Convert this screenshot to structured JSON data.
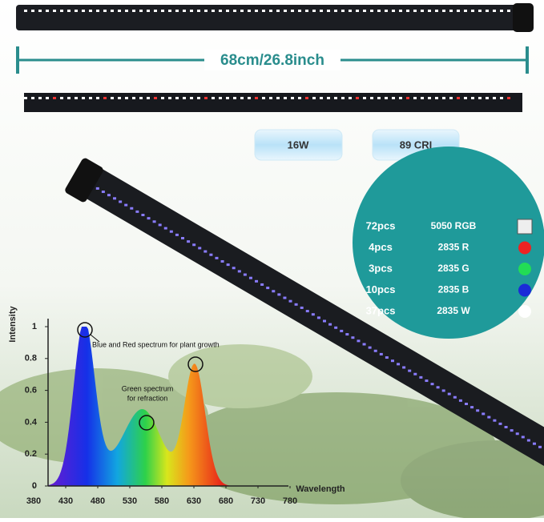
{
  "dimension": "68cm/26.8inch",
  "badges": [
    "16W",
    "89 CRI"
  ],
  "leds": [
    {
      "count": "72pcs",
      "type": "5050 RGB"
    },
    {
      "count": "4pcs",
      "type": "2835 R"
    },
    {
      "count": "3pcs",
      "type": "2835 G"
    },
    {
      "count": "10pcs",
      "type": "2835 B"
    },
    {
      "count": "37pcs",
      "type": "2835 W"
    }
  ],
  "spectrum": {
    "y_label": "Intensity",
    "x_label": "Wavelength",
    "ylim": [
      0,
      1
    ],
    "yticks": [
      0,
      0.2,
      0.4,
      0.6,
      0.8,
      1
    ],
    "xlim": [
      380,
      780
    ],
    "xticks": [
      380,
      430,
      480,
      530,
      580,
      630,
      680,
      730,
      780
    ],
    "annotations": [
      "Blue and Red spectrum for plant growth",
      "Green spectrum",
      "for refraction"
    ]
  }
}
